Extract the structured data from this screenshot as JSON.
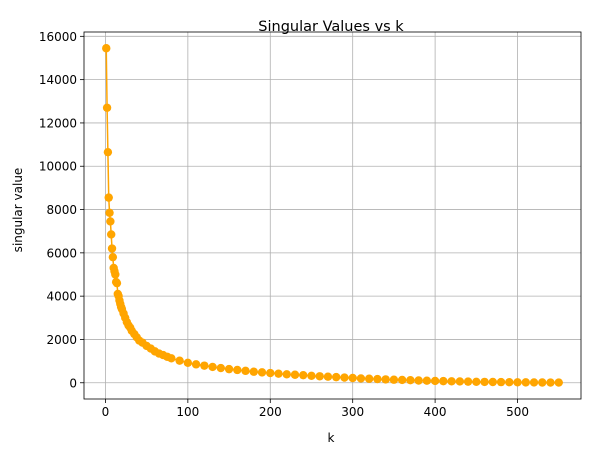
{
  "chart_data": {
    "type": "line",
    "title": "Singular Values vs k",
    "xlabel": "k",
    "ylabel": "singular value",
    "xlim": [
      -26,
      577
    ],
    "ylim": [
      -750,
      16200
    ],
    "xticks": [
      0,
      100,
      200,
      300,
      400,
      500
    ],
    "yticks": [
      0,
      2000,
      4000,
      6000,
      8000,
      10000,
      12000,
      14000,
      16000
    ],
    "grid": true,
    "marker": "circle",
    "color": "#ffa500",
    "k_values": [
      1,
      2,
      3,
      4,
      5,
      6,
      7,
      8,
      9,
      10,
      11,
      12,
      13,
      14,
      15,
      16,
      17,
      18,
      19,
      20,
      22,
      24,
      26,
      28,
      30,
      32,
      35,
      38,
      41,
      45,
      50,
      55,
      60,
      65,
      70,
      75,
      80,
      90,
      100,
      110,
      120,
      130,
      140,
      150,
      160,
      170,
      180,
      190,
      200,
      210,
      220,
      230,
      240,
      250,
      260,
      270,
      280,
      290,
      300,
      310,
      320,
      330,
      340,
      350,
      360,
      370,
      380,
      390,
      400,
      410,
      420,
      430,
      440,
      450,
      460,
      470,
      480,
      490,
      500,
      510,
      520,
      530,
      540,
      550
    ],
    "singular_values": [
      15450,
      12700,
      10650,
      8550,
      7850,
      7450,
      6850,
      6200,
      5800,
      5300,
      5150,
      5000,
      4650,
      4600,
      4100,
      4000,
      3800,
      3650,
      3500,
      3400,
      3200,
      3000,
      2800,
      2650,
      2550,
      2400,
      2250,
      2100,
      1950,
      1850,
      1700,
      1580,
      1450,
      1350,
      1280,
      1200,
      1130,
      1020,
      920,
      850,
      790,
      730,
      680,
      630,
      590,
      550,
      510,
      480,
      450,
      420,
      390,
      370,
      350,
      320,
      300,
      280,
      260,
      240,
      220,
      200,
      185,
      170,
      155,
      140,
      130,
      118,
      105,
      95,
      85,
      75,
      68,
      60,
      52,
      45,
      40,
      35,
      30,
      26,
      22,
      18,
      15,
      12,
      10,
      8
    ]
  }
}
